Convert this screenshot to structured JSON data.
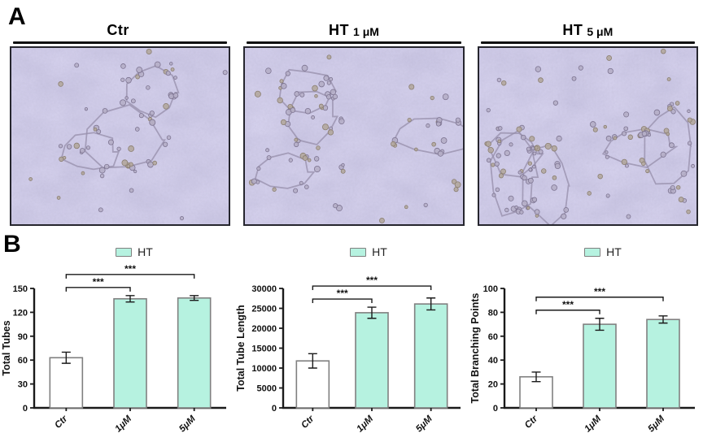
{
  "figure": {
    "panel_a_label": "A",
    "panel_b_label": "B"
  },
  "panel_a": {
    "images": [
      {
        "title_main": "Ctr",
        "title_dose": ""
      },
      {
        "title_main": "HT",
        "title_dose": "1 μM"
      },
      {
        "title_main": "HT",
        "title_dose": "5 μM"
      }
    ]
  },
  "colors": {
    "ht_fill": "#b6f2e0",
    "control_fill": "#ffffff",
    "bar_border": "#808080",
    "axis": "#1a1a1a",
    "micrograph_base": "#d4d0ec"
  },
  "chart_data": [
    {
      "type": "bar",
      "title": "",
      "xlabel": "",
      "ylabel": "Total Tubes",
      "legend": "HT",
      "legend_position": "top",
      "grid": false,
      "categories": [
        "Ctr",
        "1μM",
        "5μM"
      ],
      "values": [
        63,
        137,
        138
      ],
      "errors": [
        7,
        4,
        3
      ],
      "ylim": [
        0,
        150
      ],
      "yticks": [
        0,
        30,
        60,
        90,
        120,
        150
      ],
      "bar_fills": [
        "#ffffff",
        "#b6f2e0",
        "#b6f2e0"
      ],
      "significance": [
        {
          "from": 0,
          "to": 1,
          "label": "***"
        },
        {
          "from": 0,
          "to": 2,
          "label": "***"
        }
      ]
    },
    {
      "type": "bar",
      "title": "",
      "xlabel": "",
      "ylabel": "Total Tube Length",
      "legend": "HT",
      "legend_position": "top",
      "grid": false,
      "categories": [
        "Ctr",
        "1μM",
        "5μM"
      ],
      "values": [
        11800,
        23900,
        26100
      ],
      "errors": [
        1800,
        1400,
        1500
      ],
      "ylim": [
        0,
        30000
      ],
      "yticks": [
        0,
        5000,
        10000,
        15000,
        20000,
        25000,
        30000
      ],
      "bar_fills": [
        "#ffffff",
        "#b6f2e0",
        "#b6f2e0"
      ],
      "significance": [
        {
          "from": 0,
          "to": 1,
          "label": "***"
        },
        {
          "from": 0,
          "to": 2,
          "label": "***"
        }
      ]
    },
    {
      "type": "bar",
      "title": "",
      "xlabel": "",
      "ylabel": "Total Branching Points",
      "legend": "HT",
      "legend_position": "top",
      "grid": false,
      "categories": [
        "Ctr",
        "1μM",
        "5μM"
      ],
      "values": [
        26,
        70,
        74
      ],
      "errors": [
        4,
        5,
        3
      ],
      "ylim": [
        0,
        100
      ],
      "yticks": [
        0,
        20,
        40,
        60,
        80,
        100
      ],
      "bar_fills": [
        "#ffffff",
        "#b6f2e0",
        "#b6f2e0"
      ],
      "significance": [
        {
          "from": 0,
          "to": 1,
          "label": "***"
        },
        {
          "from": 0,
          "to": 2,
          "label": "***"
        }
      ]
    }
  ]
}
